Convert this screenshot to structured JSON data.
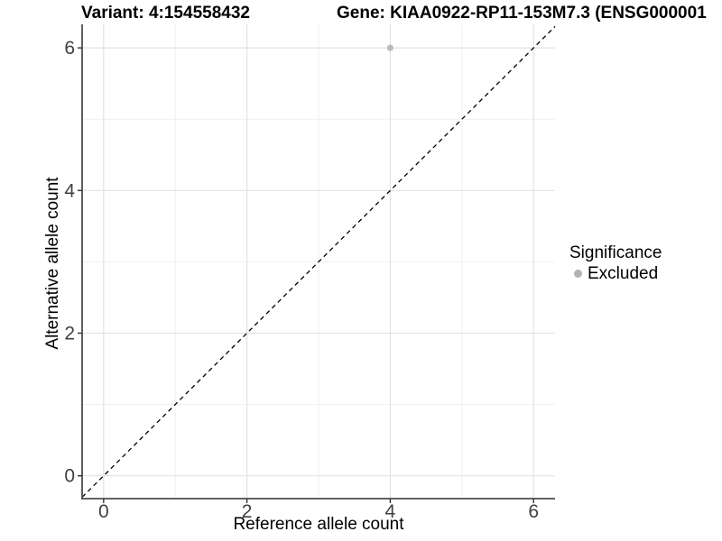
{
  "chart_data": {
    "type": "scatter",
    "titles": {
      "left": "Variant: 4:154558432",
      "right": "Gene: KIAA0922-RP11-153M7.3 (ENSG000001"
    },
    "xlabel": "Reference allele count",
    "ylabel": "Alternative allele count",
    "xlim": [
      -0.3,
      6.3
    ],
    "ylim": [
      -0.32,
      6.33
    ],
    "xticks": [
      0,
      2,
      4,
      6
    ],
    "yticks": [
      0,
      2,
      4,
      6
    ],
    "xminor": [
      1,
      3,
      5
    ],
    "yminor": [
      1,
      3,
      5
    ],
    "grid": true,
    "legend": {
      "position": "right",
      "title": "Significance",
      "items": [
        {
          "label": "Excluded",
          "color": "#b3b3b3"
        }
      ]
    },
    "reference_line": {
      "type": "identity",
      "equation": "y = x",
      "style": "dashed",
      "color": "#000000"
    },
    "series": [
      {
        "name": "Excluded",
        "color": "#b9b9b9",
        "points": [
          {
            "x": 4,
            "y": 6
          }
        ]
      }
    ],
    "style": {
      "grid_major": "#e2e2e2",
      "grid_minor": "#efefef",
      "axis_line": "#4d4d4d",
      "tick_color": "#333333",
      "tick_text": "#404040"
    }
  }
}
